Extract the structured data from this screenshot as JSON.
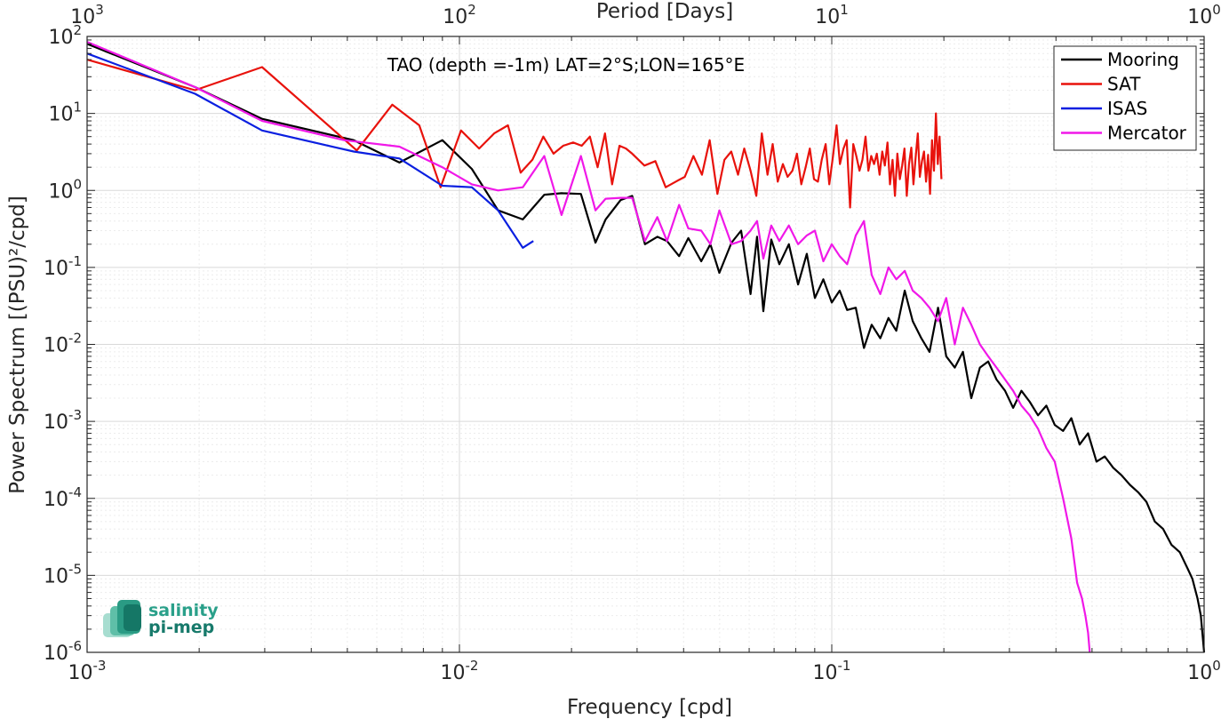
{
  "chart_data": {
    "type": "line",
    "title": "TAO (depth =-1m) LAT=2°S;LON=165°E",
    "xlabel": "Frequency [cpd]",
    "ylabel": "Power Spectrum [(PSU)²/cpd]",
    "top_xlabel": "Period [Days]",
    "x_scale": "log",
    "y_scale": "log",
    "xlim": [
      0.001,
      1
    ],
    "ylim": [
      1e-06,
      100
    ],
    "grid": true,
    "legend_position": "top-right",
    "x_ticks": [
      {
        "value": 0.001,
        "base": "10",
        "exp": "-3"
      },
      {
        "value": 0.01,
        "base": "10",
        "exp": "-2"
      },
      {
        "value": 0.1,
        "base": "10",
        "exp": "-1"
      },
      {
        "value": 1,
        "base": "10",
        "exp": "0"
      }
    ],
    "top_ticks": [
      {
        "value": 0.001,
        "base": "10",
        "exp": "3"
      },
      {
        "value": 0.01,
        "base": "10",
        "exp": "2"
      },
      {
        "value": 0.1,
        "base": "10",
        "exp": "1"
      },
      {
        "value": 1,
        "base": "10",
        "exp": "0"
      }
    ],
    "y_ticks": [
      {
        "value": 100,
        "base": "10",
        "exp": "2"
      },
      {
        "value": 10,
        "base": "10",
        "exp": "1"
      },
      {
        "value": 1,
        "base": "10",
        "exp": "0"
      },
      {
        "value": 0.1,
        "base": "10",
        "exp": "-1"
      },
      {
        "value": 0.01,
        "base": "10",
        "exp": "-2"
      },
      {
        "value": 0.001,
        "base": "10",
        "exp": "-3"
      },
      {
        "value": 0.0001,
        "base": "10",
        "exp": "-4"
      },
      {
        "value": 1e-05,
        "base": "10",
        "exp": "-5"
      },
      {
        "value": 1e-06,
        "base": "10",
        "exp": "-6"
      }
    ],
    "series": [
      {
        "name": "Mooring",
        "color": "#000000",
        "x": [
          0.001,
          0.00195,
          0.00295,
          0.0052,
          0.0069,
          0.009,
          0.0108,
          0.0127,
          0.0148,
          0.0169,
          0.0188,
          0.0212,
          0.0232,
          0.0247,
          0.0271,
          0.0291,
          0.0315,
          0.034,
          0.0361,
          0.0389,
          0.0412,
          0.0446,
          0.0472,
          0.0499,
          0.0538,
          0.0571,
          0.0605,
          0.063,
          0.0655,
          0.0688,
          0.0723,
          0.0767,
          0.0812,
          0.0857,
          0.0901,
          0.0949,
          0.1,
          0.105,
          0.11,
          0.116,
          0.122,
          0.128,
          0.135,
          0.142,
          0.149,
          0.157,
          0.165,
          0.174,
          0.183,
          0.193,
          0.203,
          0.214,
          0.225,
          0.237,
          0.25,
          0.263,
          0.277,
          0.292,
          0.307,
          0.323,
          0.34,
          0.358,
          0.377,
          0.397,
          0.418,
          0.44,
          0.463,
          0.488,
          0.514,
          0.541,
          0.57,
          0.6,
          0.632,
          0.665,
          0.7,
          0.737,
          0.776,
          0.817,
          0.86,
          0.905,
          0.93,
          0.96,
          0.98,
          1.0
        ],
        "y": [
          80,
          22,
          8.5,
          4.5,
          2.3,
          4.5,
          1.9,
          0.55,
          0.42,
          0.88,
          0.92,
          0.9,
          0.21,
          0.42,
          0.75,
          0.85,
          0.2,
          0.25,
          0.22,
          0.14,
          0.24,
          0.12,
          0.2,
          0.085,
          0.21,
          0.3,
          0.045,
          0.25,
          0.027,
          0.23,
          0.11,
          0.2,
          0.06,
          0.15,
          0.04,
          0.07,
          0.035,
          0.05,
          0.028,
          0.03,
          0.009,
          0.018,
          0.012,
          0.022,
          0.015,
          0.05,
          0.02,
          0.012,
          0.008,
          0.03,
          0.007,
          0.005,
          0.008,
          0.002,
          0.005,
          0.006,
          0.0035,
          0.0025,
          0.0015,
          0.0025,
          0.0018,
          0.0012,
          0.0016,
          0.0009,
          0.00075,
          0.0011,
          0.0005,
          0.0007,
          0.0003,
          0.00035,
          0.00025,
          0.0002,
          0.00015,
          0.00012,
          9e-05,
          5e-05,
          4e-05,
          2.5e-05,
          2e-05,
          1.2e-05,
          9e-06,
          5e-06,
          3e-06,
          1e-06
        ]
      },
      {
        "name": "SAT",
        "color": "#e8120c",
        "x": [
          0.001,
          0.00195,
          0.00295,
          0.0053,
          0.0066,
          0.0078,
          0.0089,
          0.0101,
          0.0113,
          0.0124,
          0.0135,
          0.0146,
          0.0157,
          0.0168,
          0.0179,
          0.019,
          0.0202,
          0.0213,
          0.0224,
          0.0235,
          0.0246,
          0.0257,
          0.0269,
          0.028,
          0.0291,
          0.0314,
          0.0336,
          0.0358,
          0.0381,
          0.0403,
          0.0425,
          0.0448,
          0.047,
          0.0493,
          0.0515,
          0.0537,
          0.056,
          0.0582,
          0.0605,
          0.0627,
          0.0649,
          0.0672,
          0.0694,
          0.0716,
          0.0739,
          0.0761,
          0.0784,
          0.0806,
          0.0828,
          0.0851,
          0.0873,
          0.0896,
          0.0918,
          0.094,
          0.0963,
          0.0985,
          0.1008,
          0.103,
          0.1052,
          0.1075,
          0.1097,
          0.112,
          0.1142,
          0.1164,
          0.1187,
          0.1209,
          0.1232,
          0.1254,
          0.1276,
          0.1299,
          0.1321,
          0.1344,
          0.1366,
          0.1388,
          0.1411,
          0.1433,
          0.1456,
          0.1478,
          0.15,
          0.1523,
          0.1545,
          0.1568,
          0.159,
          0.1612,
          0.1635,
          0.1657,
          0.168,
          0.1702,
          0.1724,
          0.1747,
          0.1769,
          0.1792,
          0.1814,
          0.1836,
          0.1859,
          0.1881,
          0.1904,
          0.1926,
          0.1948,
          0.197
        ],
        "y": [
          50,
          20,
          40,
          3.3,
          13,
          7,
          1.1,
          6,
          3.5,
          5.5,
          7,
          1.7,
          2.5,
          5,
          3,
          3.8,
          4.2,
          3.8,
          5,
          2,
          5.5,
          1.2,
          3.8,
          3.5,
          3,
          2.1,
          2.4,
          1.1,
          1.3,
          1.5,
          2.8,
          1.6,
          4.5,
          0.9,
          2.5,
          3.2,
          1.6,
          3.5,
          1.8,
          0.85,
          5.5,
          1.6,
          4,
          1.3,
          2.2,
          1.5,
          1.8,
          3,
          1.2,
          2,
          3.5,
          1.4,
          1.3,
          2.5,
          4,
          1.2,
          2.8,
          7,
          2.2,
          3.5,
          4.5,
          0.6,
          4,
          2.8,
          1.8,
          2.5,
          5,
          1.8,
          2.8,
          2.2,
          3,
          1.6,
          3.2,
          2.1,
          4.2,
          1.2,
          2.5,
          0.85,
          3,
          1.4,
          2.1,
          3.5,
          0.85,
          2.2,
          3.6,
          1.2,
          2.7,
          5.5,
          1.5,
          2.4,
          3.2,
          1.3,
          2.9,
          0.9,
          4.5,
          1.8,
          10,
          2.2,
          5,
          1.4
        ]
      },
      {
        "name": "ISAS",
        "color": "#0a1fe0",
        "x": [
          0.001,
          0.00195,
          0.00295,
          0.0052,
          0.0069,
          0.009,
          0.0108,
          0.0127,
          0.0148,
          0.0158
        ],
        "y": [
          60,
          18,
          6,
          3.2,
          2.6,
          1.15,
          1.1,
          0.55,
          0.18,
          0.22
        ]
      },
      {
        "name": "Mercator",
        "color": "#f018e8",
        "x": [
          0.001,
          0.00195,
          0.00295,
          0.0049,
          0.0069,
          0.009,
          0.0108,
          0.0127,
          0.0148,
          0.0169,
          0.0188,
          0.0212,
          0.0232,
          0.0247,
          0.0271,
          0.0291,
          0.0315,
          0.034,
          0.0361,
          0.0389,
          0.0412,
          0.0446,
          0.0472,
          0.0499,
          0.0538,
          0.0571,
          0.0605,
          0.063,
          0.0655,
          0.0688,
          0.0723,
          0.0767,
          0.0812,
          0.0857,
          0.0901,
          0.0949,
          0.1,
          0.105,
          0.11,
          0.116,
          0.122,
          0.128,
          0.135,
          0.142,
          0.149,
          0.157,
          0.165,
          0.174,
          0.183,
          0.193,
          0.203,
          0.214,
          0.225,
          0.237,
          0.25,
          0.263,
          0.277,
          0.292,
          0.307,
          0.323,
          0.34,
          0.358,
          0.377,
          0.397,
          0.418,
          0.44,
          0.456,
          0.47,
          0.48,
          0.488,
          0.493
        ],
        "y": [
          85,
          22,
          8,
          4.5,
          3.7,
          2,
          1.2,
          1.0,
          1.1,
          2.8,
          0.48,
          2.8,
          0.55,
          0.78,
          0.8,
          0.8,
          0.22,
          0.45,
          0.22,
          0.65,
          0.32,
          0.3,
          0.2,
          0.55,
          0.2,
          0.22,
          0.3,
          0.4,
          0.13,
          0.35,
          0.22,
          0.35,
          0.2,
          0.26,
          0.3,
          0.12,
          0.2,
          0.14,
          0.11,
          0.26,
          0.4,
          0.08,
          0.045,
          0.1,
          0.07,
          0.09,
          0.05,
          0.04,
          0.03,
          0.02,
          0.04,
          0.01,
          0.03,
          0.018,
          0.01,
          0.007,
          0.005,
          0.0035,
          0.0025,
          0.0016,
          0.0012,
          0.0008,
          0.00045,
          0.0003,
          0.0001,
          3e-05,
          8e-06,
          5e-06,
          3e-06,
          1.8e-06,
          1e-06
        ]
      }
    ]
  },
  "logo": {
    "line1": "salinity",
    "line2": "pi-mep"
  }
}
